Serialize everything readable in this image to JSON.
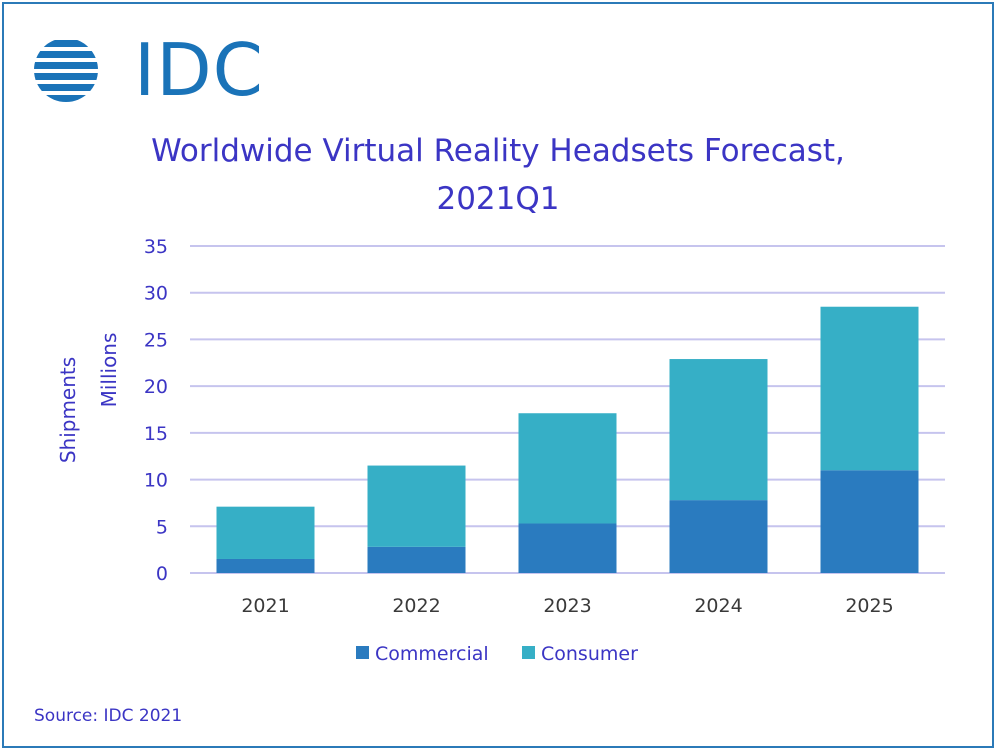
{
  "logo": {
    "text": "IDC",
    "color": "#1a73b8"
  },
  "title_line1": "Worldwide Virtual Reality Headsets Forecast,",
  "title_line2": "2021Q1",
  "source": "Source: IDC 2021",
  "colors": {
    "title": "#3b35c4",
    "commercial": "#2a7bbf",
    "consumer": "#36afc6",
    "grid": "#c6c4ee",
    "border": "#2b7ab8"
  },
  "chart_data": {
    "type": "bar",
    "stacked": true,
    "title": "Worldwide Virtual Reality Headsets Forecast, 2021Q1",
    "ylabel_line1": "Shipments",
    "ylabel_line2": "Millions",
    "categories": [
      "2021",
      "2022",
      "2023",
      "2024",
      "2025"
    ],
    "series": [
      {
        "name": "Commercial",
        "values": [
          1.5,
          2.8,
          5.3,
          7.8,
          11.0
        ]
      },
      {
        "name": "Consumer",
        "values": [
          5.6,
          8.7,
          11.8,
          15.1,
          17.5
        ]
      }
    ],
    "ylim": [
      0,
      35
    ],
    "yticks": [
      0,
      5,
      10,
      15,
      20,
      25,
      30,
      35
    ],
    "grid": true,
    "legend_position": "bottom"
  }
}
